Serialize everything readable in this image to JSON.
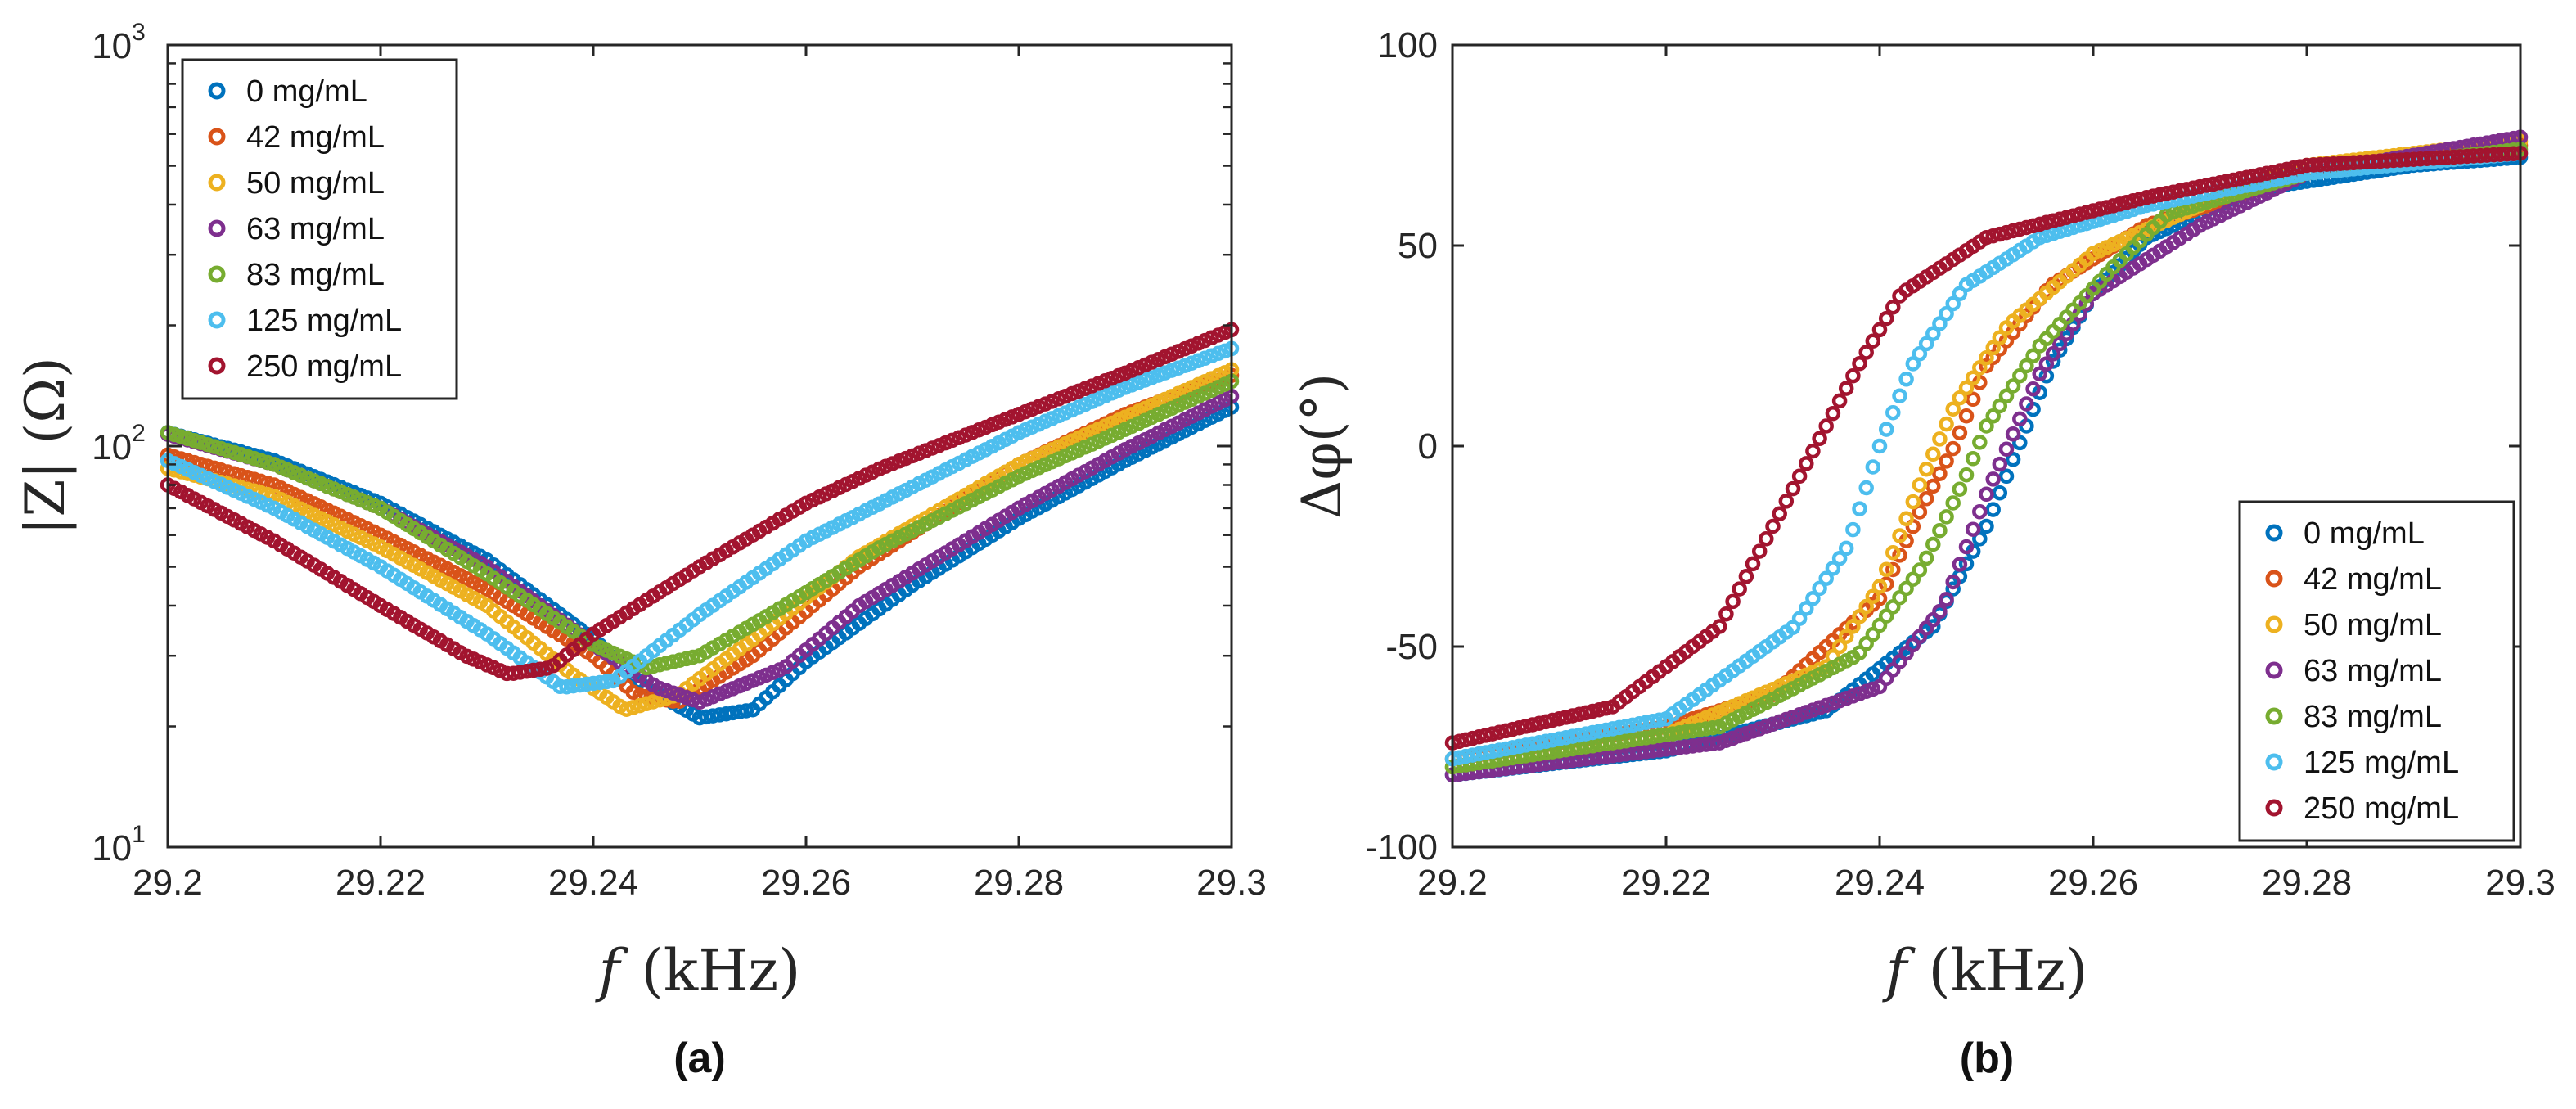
{
  "series_names": [
    "0 mg/mL",
    "42 mg/mL",
    "50 mg/mL",
    "63 mg/mL",
    "83 mg/mL",
    "125 mg/mL",
    "250 mg/mL"
  ],
  "colors": [
    "#0072BD",
    "#D95319",
    "#EDB120",
    "#7E2F8E",
    "#77AC30",
    "#4DBEEE",
    "#A2142F"
  ],
  "panel_labels": {
    "a": "(a)",
    "b": "(b)"
  },
  "chart_data": [
    {
      "id": "a",
      "type": "scatter",
      "xlabel": {
        "var": "f",
        "unit": "(kHz)"
      },
      "ylabel": {
        "text": "|Z| (Ω)"
      },
      "yscale": "log",
      "xlim": [
        29.2,
        29.3
      ],
      "ylim": [
        10,
        1000
      ],
      "xticks": [
        "29.2",
        "29.22",
        "29.24",
        "29.26",
        "29.28",
        "29.3"
      ],
      "yticks": [
        {
          "base": "10",
          "exp": "1"
        },
        {
          "base": "10",
          "exp": "2"
        },
        {
          "base": "10",
          "exp": "3"
        }
      ],
      "legend_position": "top-left",
      "series": [
        {
          "name": "0 mg/mL",
          "points": [
            [
              29.2,
              108
            ],
            [
              29.21,
              92
            ],
            [
              29.22,
              72
            ],
            [
              29.23,
              52
            ],
            [
              29.24,
              33
            ],
            [
              29.245,
              25
            ],
            [
              29.25,
              21
            ],
            [
              29.255,
              22
            ],
            [
              29.26,
              29
            ],
            [
              29.27,
              45
            ],
            [
              29.28,
              66
            ],
            [
              29.29,
              92
            ],
            [
              29.3,
              125
            ]
          ]
        },
        {
          "name": "42 mg/mL",
          "points": [
            [
              29.2,
              95
            ],
            [
              29.21,
              80
            ],
            [
              29.22,
              60
            ],
            [
              29.23,
              44
            ],
            [
              29.24,
              30
            ],
            [
              29.244,
              24
            ],
            [
              29.248,
              23
            ],
            [
              29.255,
              30
            ],
            [
              29.265,
              50
            ],
            [
              29.28,
              90
            ],
            [
              29.29,
              120
            ],
            [
              29.3,
              150
            ]
          ]
        },
        {
          "name": "50 mg/mL",
          "points": [
            [
              29.2,
              88
            ],
            [
              29.21,
              75
            ],
            [
              29.22,
              56
            ],
            [
              29.23,
              40
            ],
            [
              29.238,
              27
            ],
            [
              29.243,
              22
            ],
            [
              29.248,
              24
            ],
            [
              29.255,
              33
            ],
            [
              29.265,
              53
            ],
            [
              29.28,
              90
            ],
            [
              29.29,
              118
            ],
            [
              29.3,
              155
            ]
          ]
        },
        {
          "name": "63 mg/mL",
          "points": [
            [
              29.2,
              107
            ],
            [
              29.21,
              90
            ],
            [
              29.22,
              70
            ],
            [
              29.23,
              50
            ],
            [
              29.24,
              32
            ],
            [
              29.246,
              25
            ],
            [
              29.25,
              23
            ],
            [
              29.258,
              28
            ],
            [
              29.265,
              40
            ],
            [
              29.28,
              70
            ],
            [
              29.29,
              98
            ],
            [
              29.3,
              133
            ]
          ]
        },
        {
          "name": "83 mg/mL",
          "points": [
            [
              29.2,
              108
            ],
            [
              29.21,
              90
            ],
            [
              29.22,
              70
            ],
            [
              29.23,
              48
            ],
            [
              29.24,
              32
            ],
            [
              29.245,
              28
            ],
            [
              29.25,
              30
            ],
            [
              29.258,
              40
            ],
            [
              29.267,
              56
            ],
            [
              29.28,
              84
            ],
            [
              29.29,
              110
            ],
            [
              29.3,
              145
            ]
          ]
        },
        {
          "name": "125 mg/mL",
          "points": [
            [
              29.2,
              92
            ],
            [
              29.21,
              70
            ],
            [
              29.22,
              50
            ],
            [
              29.23,
              34
            ],
            [
              29.237,
              25
            ],
            [
              29.242,
              26
            ],
            [
              29.25,
              38
            ],
            [
              29.26,
              58
            ],
            [
              29.267,
              72
            ],
            [
              29.28,
              108
            ],
            [
              29.29,
              140
            ],
            [
              29.3,
              175
            ]
          ]
        },
        {
          "name": "250 mg/mL",
          "points": [
            [
              29.2,
              80
            ],
            [
              29.21,
              58
            ],
            [
              29.22,
              40
            ],
            [
              29.228,
              30
            ],
            [
              29.232,
              27
            ],
            [
              29.236,
              28
            ],
            [
              29.24,
              34
            ],
            [
              29.25,
              50
            ],
            [
              29.26,
              72
            ],
            [
              29.267,
              88
            ],
            [
              29.28,
              120
            ],
            [
              29.29,
              152
            ],
            [
              29.3,
              195
            ]
          ]
        }
      ]
    },
    {
      "id": "b",
      "type": "scatter",
      "xlabel": {
        "var": "f",
        "unit": "(kHz)"
      },
      "ylabel": {
        "text": "Δφ(°)"
      },
      "xlim": [
        29.2,
        29.3
      ],
      "ylim": [
        -100,
        100
      ],
      "xticks": [
        "29.2",
        "29.22",
        "29.24",
        "29.26",
        "29.28",
        "29.3"
      ],
      "yticks": [
        "-100",
        "-50",
        "0",
        "50",
        "100"
      ],
      "legend_position": "bottom-right",
      "series": [
        {
          "name": "0 mg/mL",
          "points": [
            [
              29.2,
              -82
            ],
            [
              29.22,
              -76
            ],
            [
              29.235,
              -66
            ],
            [
              29.245,
              -45
            ],
            [
              29.25,
              -20
            ],
            [
              29.253,
              0
            ],
            [
              29.256,
              20
            ],
            [
              29.26,
              38
            ],
            [
              29.265,
              52
            ],
            [
              29.275,
              64
            ],
            [
              29.29,
              70
            ],
            [
              29.3,
              72
            ]
          ]
        },
        {
          "name": "42 mg/mL",
          "points": [
            [
              29.2,
              -78
            ],
            [
              29.22,
              -70
            ],
            [
              29.23,
              -62
            ],
            [
              29.24,
              -38
            ],
            [
              29.244,
              -15
            ],
            [
              29.247,
              0
            ],
            [
              29.25,
              20
            ],
            [
              29.256,
              40
            ],
            [
              29.265,
              55
            ],
            [
              29.28,
              68
            ],
            [
              29.3,
              75
            ]
          ]
        },
        {
          "name": "50 mg/mL",
          "points": [
            [
              29.2,
              -80
            ],
            [
              29.22,
              -72
            ],
            [
              29.235,
              -55
            ],
            [
              29.24,
              -35
            ],
            [
              29.244,
              -8
            ],
            [
              29.247,
              10
            ],
            [
              29.252,
              30
            ],
            [
              29.26,
              48
            ],
            [
              29.27,
              60
            ],
            [
              29.28,
              70
            ],
            [
              29.3,
              76
            ]
          ]
        },
        {
          "name": "63 mg/mL",
          "points": [
            [
              29.2,
              -82
            ],
            [
              29.225,
              -74
            ],
            [
              29.24,
              -60
            ],
            [
              29.246,
              -40
            ],
            [
              29.25,
              -12
            ],
            [
              29.252,
              0
            ],
            [
              29.255,
              18
            ],
            [
              29.26,
              38
            ],
            [
              29.27,
              55
            ],
            [
              29.28,
              68
            ],
            [
              29.3,
              77
            ]
          ]
        },
        {
          "name": "83 mg/mL",
          "points": [
            [
              29.2,
              -80
            ],
            [
              29.225,
              -70
            ],
            [
              29.238,
              -52
            ],
            [
              29.244,
              -30
            ],
            [
              29.248,
              -8
            ],
            [
              29.25,
              5
            ],
            [
              29.255,
              25
            ],
            [
              29.262,
              45
            ],
            [
              29.267,
              58
            ],
            [
              29.28,
              68
            ],
            [
              29.3,
              74
            ]
          ]
        },
        {
          "name": "125 mg/mL",
          "points": [
            [
              29.2,
              -78
            ],
            [
              29.22,
              -68
            ],
            [
              29.232,
              -45
            ],
            [
              29.237,
              -25
            ],
            [
              29.24,
              0
            ],
            [
              29.243,
              20
            ],
            [
              29.248,
              40
            ],
            [
              29.255,
              52
            ],
            [
              29.265,
              60
            ],
            [
              29.28,
              68
            ],
            [
              29.3,
              73
            ]
          ]
        },
        {
          "name": "250 mg/mL",
          "points": [
            [
              29.2,
              -74
            ],
            [
              29.215,
              -65
            ],
            [
              29.225,
              -45
            ],
            [
              29.23,
              -20
            ],
            [
              29.234,
              0
            ],
            [
              29.238,
              20
            ],
            [
              29.242,
              38
            ],
            [
              29.25,
              52
            ],
            [
              29.265,
              62
            ],
            [
              29.28,
              70
            ],
            [
              29.3,
              73
            ]
          ]
        }
      ]
    }
  ]
}
